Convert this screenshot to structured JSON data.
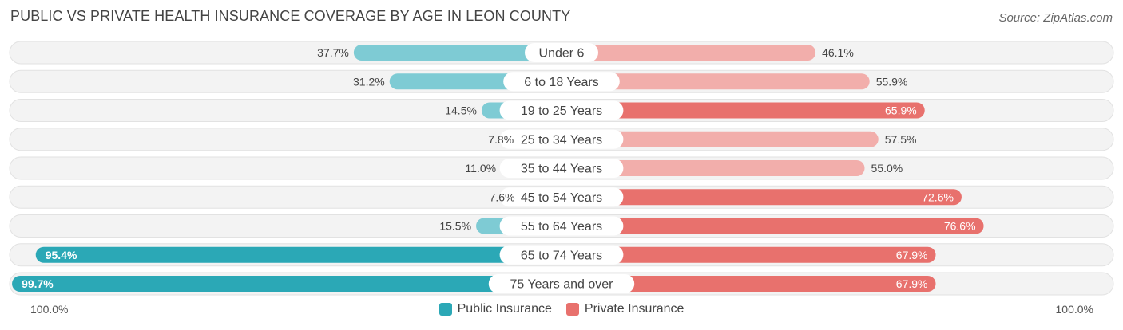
{
  "header": {
    "title": "PUBLIC VS PRIVATE HEALTH INSURANCE COVERAGE BY AGE IN LEON COUNTY",
    "source": "Source: ZipAtlas.com"
  },
  "axis": {
    "left_label": "100.0%",
    "right_label": "100.0%"
  },
  "legend": {
    "public_label": "Public Insurance",
    "private_label": "Private Insurance"
  },
  "colors": {
    "public": "#2ba8b6",
    "public_light": "#7ecbd4",
    "private": "#e8716d",
    "private_light": "#f2aeab",
    "row_bg": "#f1f1f1"
  },
  "chart_data": {
    "type": "bar",
    "title": "PUBLIC VS PRIVATE HEALTH INSURANCE COVERAGE BY AGE IN LEON COUNTY",
    "categories": [
      "Under 6",
      "6 to 18 Years",
      "19 to 25 Years",
      "25 to 34 Years",
      "35 to 44 Years",
      "45 to 54 Years",
      "55 to 64 Years",
      "65 to 74 Years",
      "75 Years and over"
    ],
    "series": [
      {
        "name": "Public Insurance",
        "values": [
          37.7,
          31.2,
          14.5,
          7.8,
          11.0,
          7.6,
          15.5,
          95.4,
          99.7
        ],
        "labels": [
          "37.7%",
          "31.2%",
          "14.5%",
          "7.8%",
          "11.0%",
          "7.6%",
          "15.5%",
          "95.4%",
          "99.7%"
        ]
      },
      {
        "name": "Private Insurance",
        "values": [
          46.1,
          55.9,
          65.9,
          57.5,
          55.0,
          72.6,
          76.6,
          67.9,
          67.9
        ],
        "labels": [
          "46.1%",
          "55.9%",
          "65.9%",
          "57.5%",
          "55.0%",
          "72.6%",
          "76.6%",
          "67.9%",
          "67.9%"
        ]
      }
    ],
    "xlim": [
      0,
      100
    ],
    "legend": "bottom-center"
  }
}
